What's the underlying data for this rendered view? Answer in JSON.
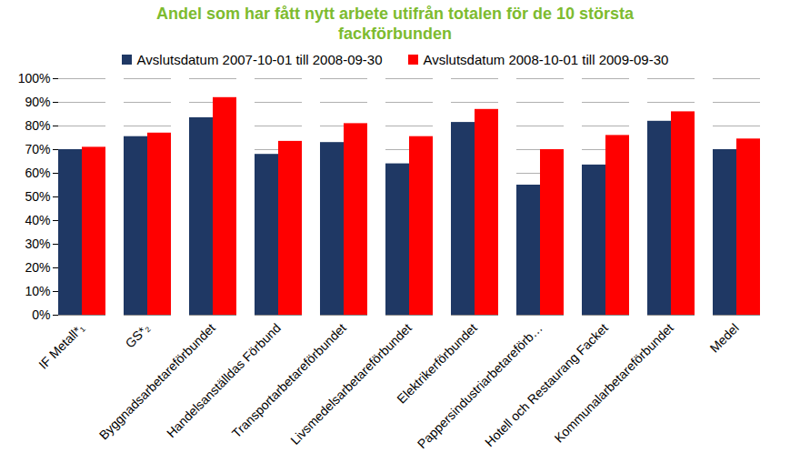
{
  "chart_data": {
    "type": "bar",
    "title": "Andel som har fått nytt arbete utifrån totalen för de 10 största fackförbunden",
    "categories": [
      "IF Metall*₁",
      "GS*₂",
      "Byggnadsarbetareförbundet",
      "Handelsanställdas Förbund",
      "Transportarbetareförbundet",
      "Livsmedelsarbetareförbundet",
      "Elektrikerförbundet",
      "Pappersindustriarbetareförb…",
      "Hotell och Restaurang Facket",
      "Kommunalarbetareförbundet",
      "Medel"
    ],
    "series": [
      {
        "name": "Avslutsdatum 2007-10-01 till 2008-09-30",
        "color": "#1f3864",
        "values": [
          70,
          75.5,
          83.5,
          68,
          73,
          64,
          81.5,
          55,
          63.5,
          82,
          70
        ]
      },
      {
        "name": "Avslutsdatum 2008-10-01 till 2009-09-30",
        "color": "#ff0000",
        "values": [
          71,
          77,
          92,
          73.5,
          81,
          75.5,
          87,
          70,
          76,
          86,
          74.5
        ]
      }
    ],
    "ylim": [
      0,
      100
    ],
    "yticks": [
      {
        "value": 0,
        "label": "0%"
      },
      {
        "value": 10,
        "label": "10%"
      },
      {
        "value": 20,
        "label": "20%"
      },
      {
        "value": 30,
        "label": "30%"
      },
      {
        "value": 40,
        "label": "40%"
      },
      {
        "value": 50,
        "label": "50%"
      },
      {
        "value": 60,
        "label": "60%"
      },
      {
        "value": 70,
        "label": "70%"
      },
      {
        "value": 80,
        "label": "80%"
      },
      {
        "value": 90,
        "label": "90%"
      },
      {
        "value": 100,
        "label": "100%"
      }
    ],
    "grid": true,
    "legend": "top"
  }
}
